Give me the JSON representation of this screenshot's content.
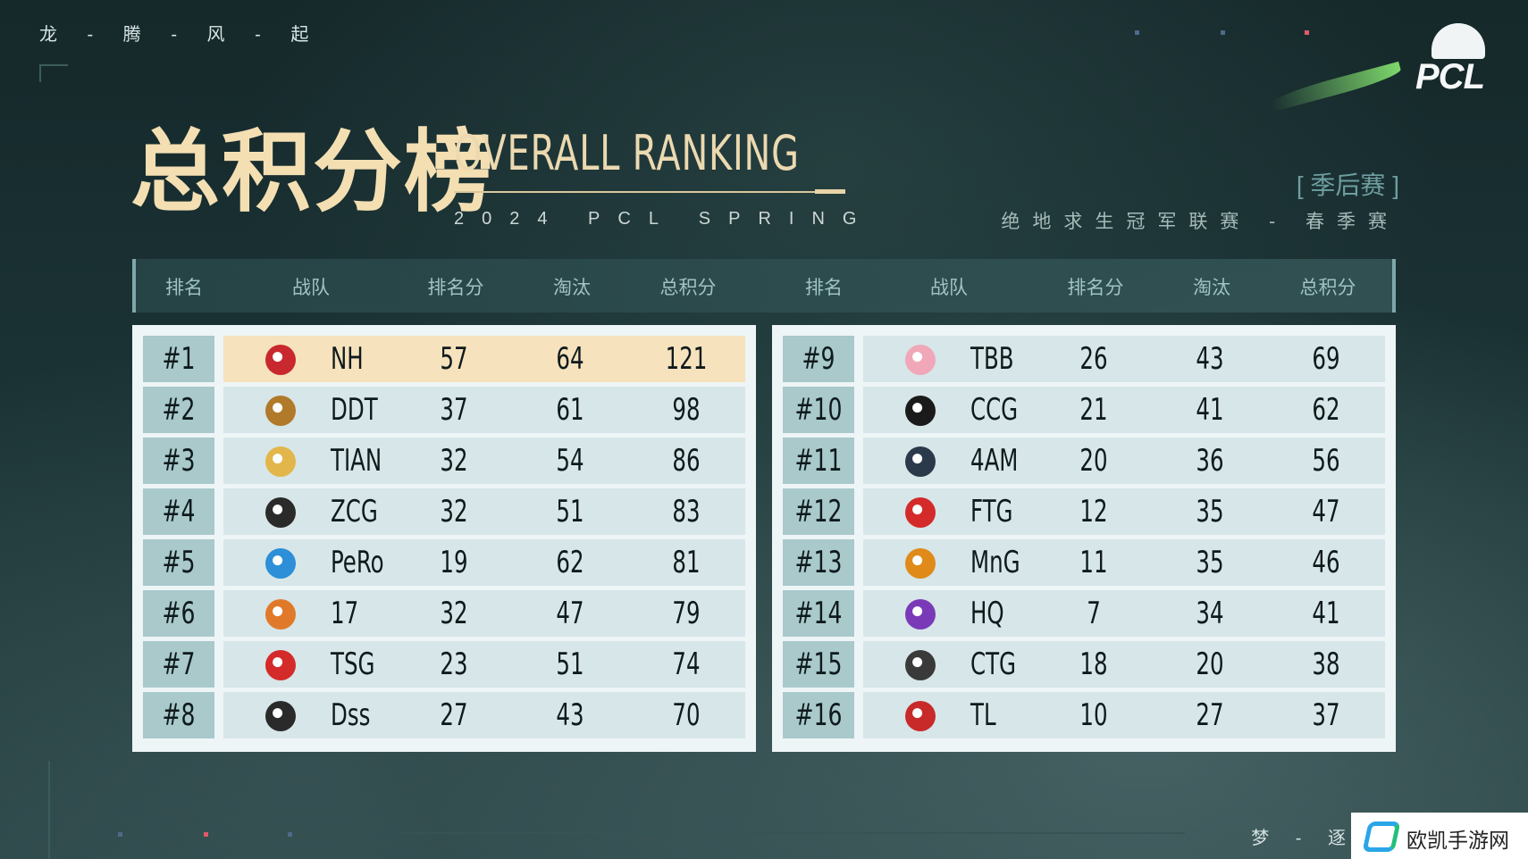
{
  "top_slogan": "龙 - 腾 - 风 - 起",
  "bottom_slogan": "梦 - 逐",
  "brand": {
    "logo_text": "PCL"
  },
  "title": {
    "cn": "总积分榜",
    "en": "OVERALL RANKING",
    "sub": "2024 PCL SPRING"
  },
  "season": {
    "tag": "[ 季后赛 ]",
    "name": "绝地求生冠军联赛 - 春季赛"
  },
  "headers": [
    "排名",
    "战队",
    "排名分",
    "淘汰",
    "总积分",
    "排名",
    "战队",
    "排名分",
    "淘汰",
    "总积分"
  ],
  "left_rows": [
    {
      "rank": "#1",
      "team": "NH",
      "placement": "57",
      "elims": "64",
      "total": "121",
      "logo_color": "#c8282e"
    },
    {
      "rank": "#2",
      "team": "DDT",
      "placement": "37",
      "elims": "61",
      "total": "98",
      "logo_color": "#b07a2a"
    },
    {
      "rank": "#3",
      "team": "TIAN",
      "placement": "32",
      "elims": "54",
      "total": "86",
      "logo_color": "#e2b64a"
    },
    {
      "rank": "#4",
      "team": "ZCG",
      "placement": "32",
      "elims": "51",
      "total": "83",
      "logo_color": "#2a2a2a"
    },
    {
      "rank": "#5",
      "team": "PeRo",
      "placement": "19",
      "elims": "62",
      "total": "81",
      "logo_color": "#2c8fd8"
    },
    {
      "rank": "#6",
      "team": "17",
      "placement": "32",
      "elims": "47",
      "total": "79",
      "logo_color": "#e07a2a"
    },
    {
      "rank": "#7",
      "team": "TSG",
      "placement": "23",
      "elims": "51",
      "total": "74",
      "logo_color": "#d42a2a"
    },
    {
      "rank": "#8",
      "team": "Dss",
      "placement": "27",
      "elims": "43",
      "total": "70",
      "logo_color": "#2a2a2a"
    }
  ],
  "right_rows": [
    {
      "rank": "#9",
      "team": "TBB",
      "placement": "26",
      "elims": "43",
      "total": "69",
      "logo_color": "#f0a8b8"
    },
    {
      "rank": "#10",
      "team": "CCG",
      "placement": "21",
      "elims": "41",
      "total": "62",
      "logo_color": "#1a1a1a"
    },
    {
      "rank": "#11",
      "team": "4AM",
      "placement": "20",
      "elims": "36",
      "total": "56",
      "logo_color": "#2a3a4a"
    },
    {
      "rank": "#12",
      "team": "FTG",
      "placement": "12",
      "elims": "35",
      "total": "47",
      "logo_color": "#d42a2a"
    },
    {
      "rank": "#13",
      "team": "MnG",
      "placement": "11",
      "elims": "35",
      "total": "46",
      "logo_color": "#e08a1a"
    },
    {
      "rank": "#14",
      "team": "HQ",
      "placement": "7",
      "elims": "34",
      "total": "41",
      "logo_color": "#7a3ab8"
    },
    {
      "rank": "#15",
      "team": "CTG",
      "placement": "18",
      "elims": "20",
      "total": "38",
      "logo_color": "#3a3a3a"
    },
    {
      "rank": "#16",
      "team": "TL",
      "placement": "10",
      "elims": "27",
      "total": "37",
      "logo_color": "#c82a2a"
    }
  ],
  "watermark": {
    "text": "欧凯手游网"
  }
}
